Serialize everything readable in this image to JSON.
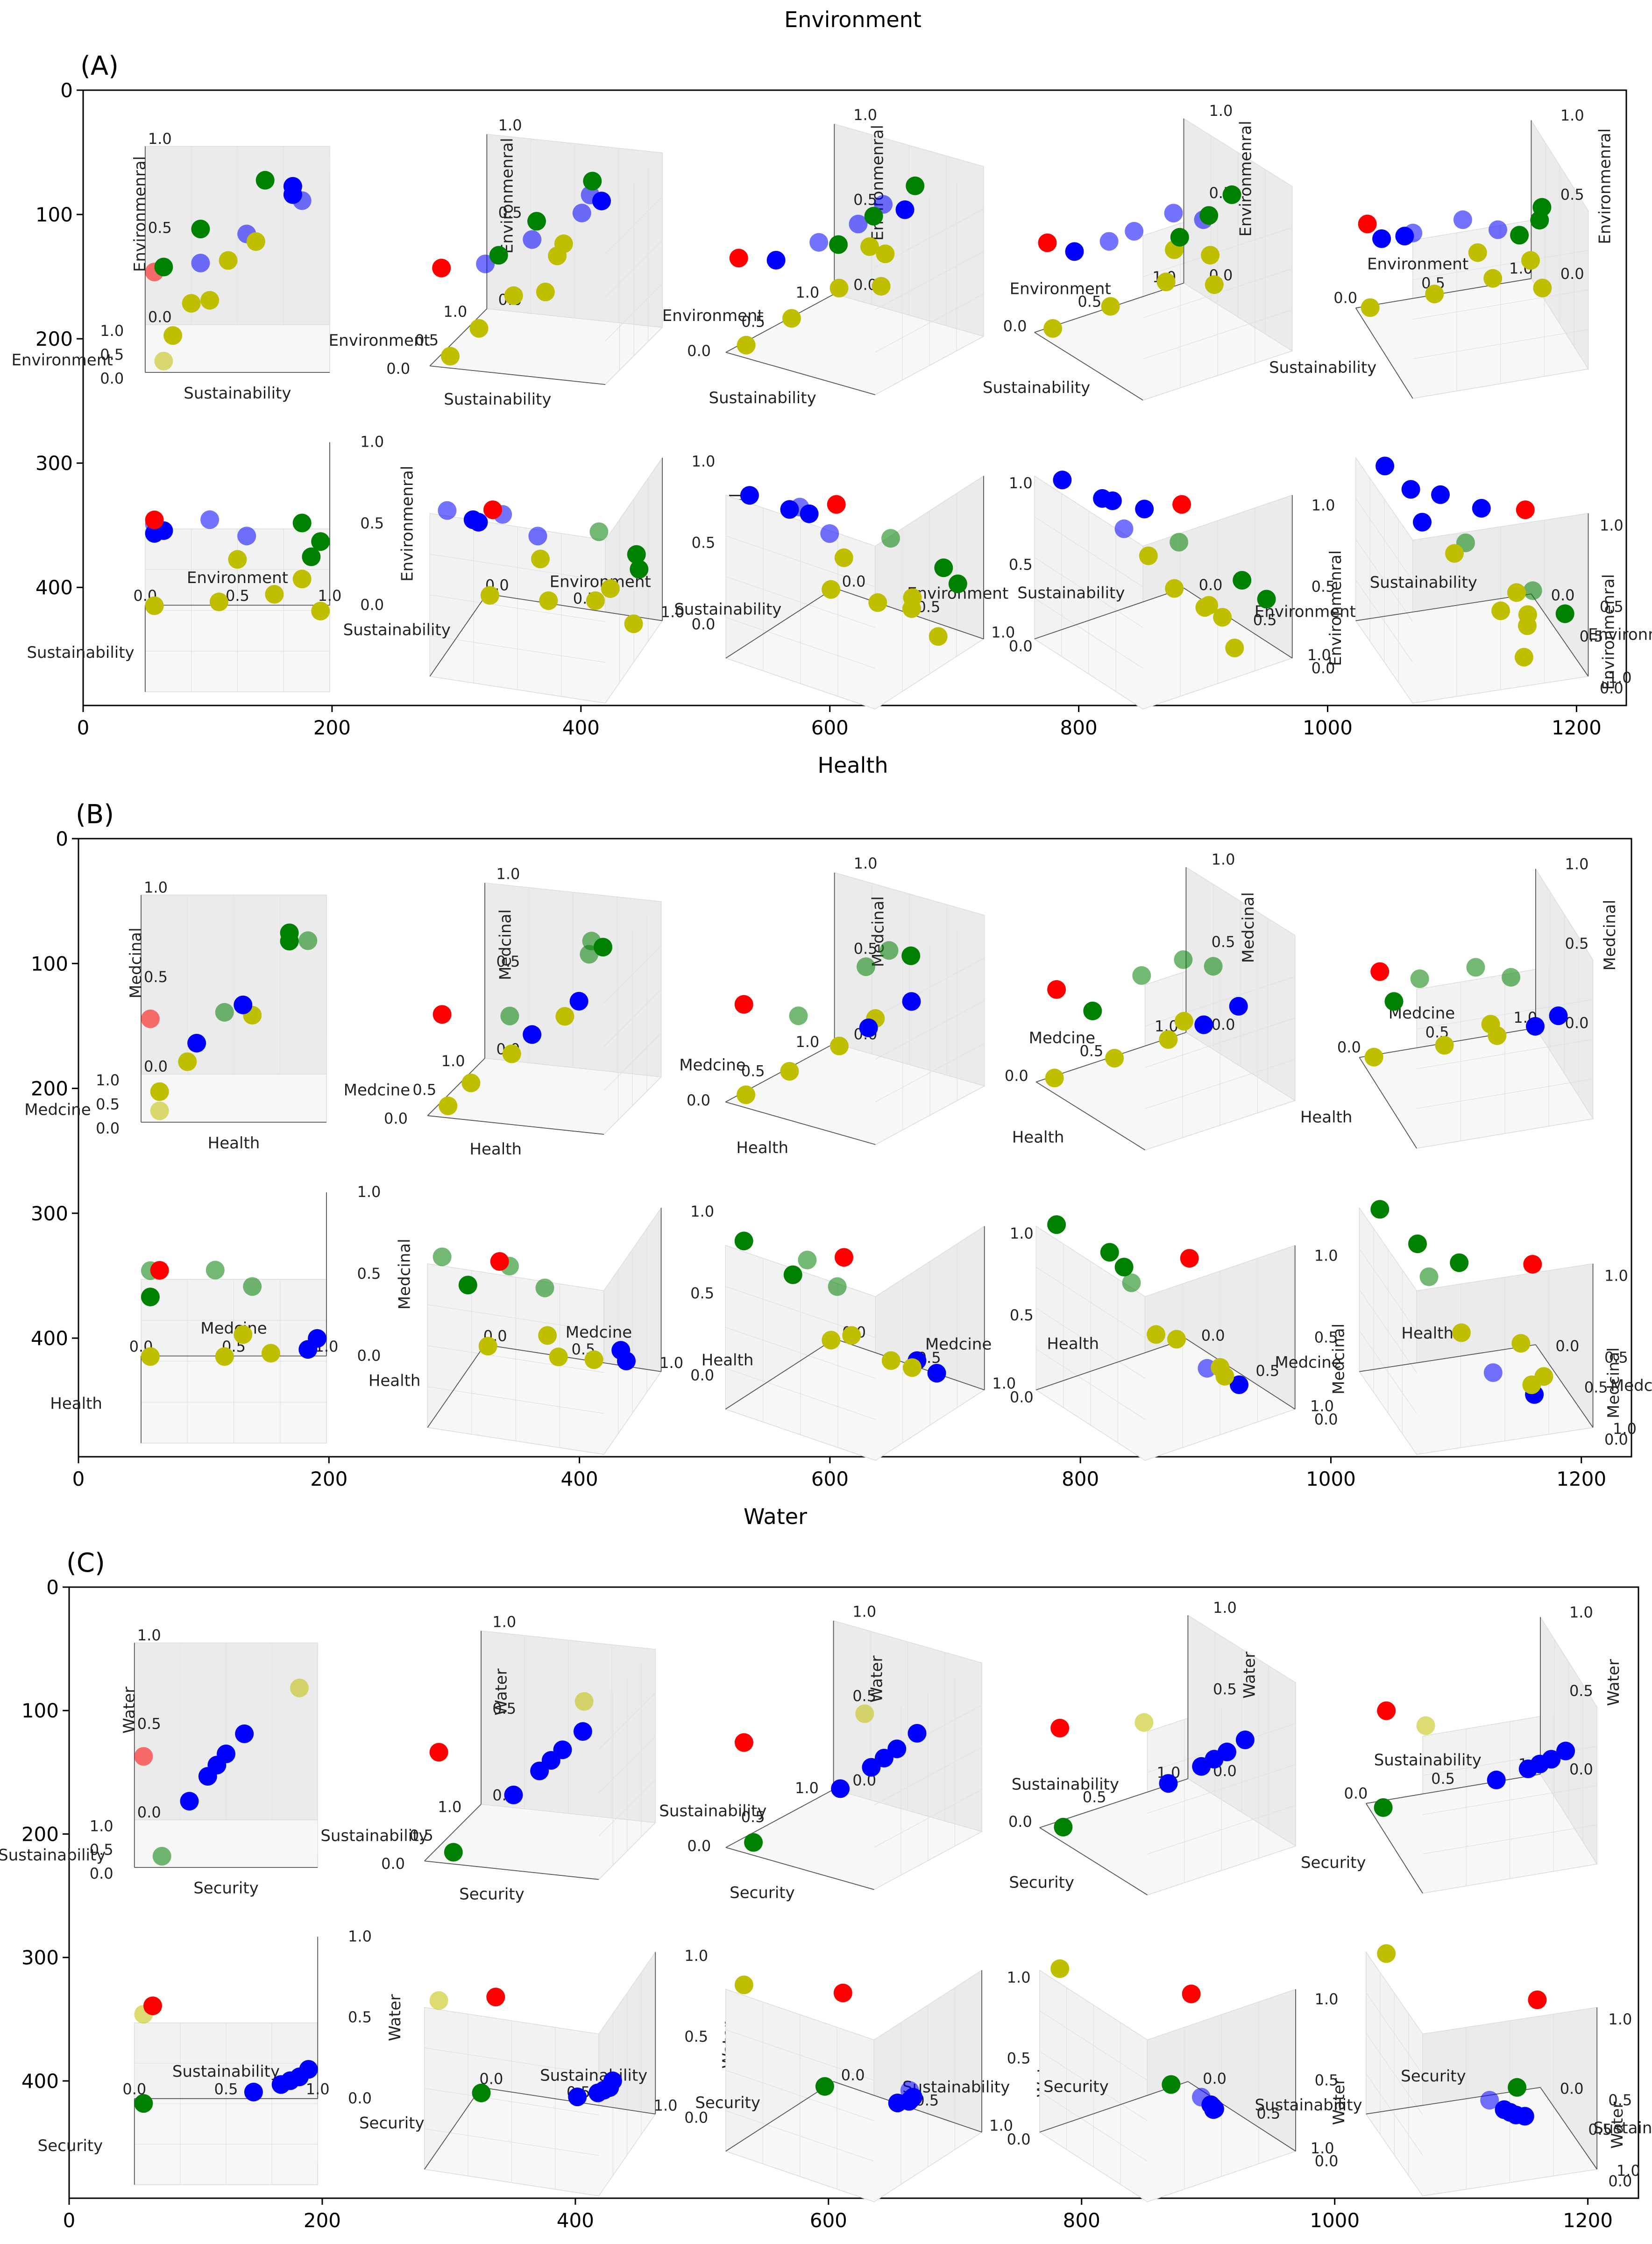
{
  "figure": {
    "title": "Environment"
  },
  "chart_data": [
    {
      "panel": "(A)",
      "type": "scatter",
      "xlabel": "Health",
      "x_ticks": [
        "0",
        "200",
        "400",
        "600",
        "800",
        "1000",
        "1200"
      ],
      "y_ticks": [
        "0",
        "100",
        "200",
        "300",
        "400"
      ],
      "xlim": [
        0,
        1240
      ],
      "ylim": [
        0,
        495
      ],
      "subplot_axes": {
        "x": "Environment",
        "y": "Sustainability",
        "z": "Environmenral"
      },
      "subplot_tick_labels": [
        "0.0",
        "0.5",
        "1.0"
      ],
      "colors": {
        "blue": "#0000ff",
        "green": "#008000",
        "yellow": "#bfbf00",
        "red": "#ff0000"
      },
      "points": [
        {
          "x": 0.05,
          "y": 0.85,
          "z": 0.95,
          "c": "blue"
        },
        {
          "x": 0.35,
          "y": 0.8,
          "z": 0.95,
          "c": "blue"
        },
        {
          "x": 0.55,
          "y": 0.8,
          "z": 0.85,
          "c": "blue"
        },
        {
          "x": 0.1,
          "y": 0.55,
          "z": 0.75,
          "c": "blue"
        },
        {
          "x": 0.05,
          "y": 0.3,
          "z": 0.6,
          "c": "blue"
        },
        {
          "x": 0.85,
          "y": 0.65,
          "z": 0.85,
          "c": "green"
        },
        {
          "x": 0.95,
          "y": 0.3,
          "z": 0.55,
          "c": "green"
        },
        {
          "x": 0.9,
          "y": 0.1,
          "z": 0.35,
          "c": "green"
        },
        {
          "x": 0.5,
          "y": 0.6,
          "z": 0.6,
          "c": "yellow"
        },
        {
          "x": 0.85,
          "y": 0.45,
          "z": 0.4,
          "c": "yellow"
        },
        {
          "x": 0.7,
          "y": 0.25,
          "z": 0.2,
          "c": "yellow"
        },
        {
          "x": 0.4,
          "y": 0.15,
          "z": 0.1,
          "c": "yellow"
        },
        {
          "x": 0.05,
          "y": 0.1,
          "z": 0.05,
          "c": "yellow"
        },
        {
          "x": 0.95,
          "y": 0.35,
          "z": 0.15,
          "c": "yellow"
        },
        {
          "x": 0.05,
          "y": 0.05,
          "z": 0.55,
          "c": "red"
        }
      ]
    },
    {
      "panel": "(B)",
      "type": "scatter",
      "xlabel": "Water",
      "x_ticks": [
        "0",
        "200",
        "400",
        "600",
        "800",
        "1000",
        "1200"
      ],
      "y_ticks": [
        "0",
        "100",
        "200",
        "300",
        "400"
      ],
      "xlim": [
        0,
        1240
      ],
      "ylim": [
        0,
        495
      ],
      "subplot_axes": {
        "x": "Medcine",
        "y": "Health",
        "z": "Medcinal"
      },
      "subplot_tick_labels": [
        "0.0",
        "0.5",
        "1.0"
      ],
      "colors": {
        "blue": "#0000ff",
        "green": "#008000",
        "yellow": "#bfbf00",
        "red": "#ff0000"
      },
      "points": [
        {
          "x": 0.05,
          "y": 0.9,
          "z": 1.0,
          "c": "green"
        },
        {
          "x": 0.4,
          "y": 0.8,
          "z": 0.95,
          "c": "green"
        },
        {
          "x": 0.6,
          "y": 0.8,
          "z": 0.85,
          "c": "green"
        },
        {
          "x": 0.05,
          "y": 0.45,
          "z": 0.6,
          "c": "green"
        },
        {
          "x": 0.95,
          "y": 0.55,
          "z": 0.4,
          "c": "blue"
        },
        {
          "x": 0.9,
          "y": 0.3,
          "z": 0.2,
          "c": "blue"
        },
        {
          "x": 0.55,
          "y": 0.6,
          "z": 0.45,
          "c": "yellow"
        },
        {
          "x": 0.7,
          "y": 0.25,
          "z": 0.15,
          "c": "yellow"
        },
        {
          "x": 0.45,
          "y": 0.1,
          "z": 0.05,
          "c": "yellow"
        },
        {
          "x": 0.05,
          "y": 0.1,
          "z": 0.05,
          "c": "yellow"
        },
        {
          "x": 0.1,
          "y": 0.05,
          "z": 0.55,
          "c": "red"
        }
      ]
    },
    {
      "panel": "(C)",
      "type": "scatter",
      "xlabel": "",
      "x_ticks": [
        "0",
        "200",
        "400",
        "600",
        "800",
        "1000",
        "1200"
      ],
      "y_ticks": [
        "0",
        "100",
        "200",
        "300",
        "400"
      ],
      "xlim": [
        0,
        1240
      ],
      "ylim": [
        0,
        495
      ],
      "subplot_axes": {
        "x": "Sustainability",
        "y": "Security",
        "z": "Water"
      },
      "subplot_tick_labels": [
        "0.0",
        "0.5",
        "1.0"
      ],
      "colors": {
        "blue": "#0000ff",
        "green": "#008000",
        "yellow": "#bfbf00",
        "red": "#ff0000"
      },
      "points": [
        {
          "x": 0.05,
          "y": 0.9,
          "z": 1.0,
          "c": "yellow"
        },
        {
          "x": 0.1,
          "y": 0.05,
          "z": 0.6,
          "c": "red"
        },
        {
          "x": 0.05,
          "y": 0.15,
          "z": 0.05,
          "c": "green"
        },
        {
          "x": 0.95,
          "y": 0.6,
          "z": 0.5,
          "c": "blue"
        },
        {
          "x": 0.9,
          "y": 0.5,
          "z": 0.4,
          "c": "blue"
        },
        {
          "x": 0.85,
          "y": 0.45,
          "z": 0.35,
          "c": "blue"
        },
        {
          "x": 0.8,
          "y": 0.4,
          "z": 0.3,
          "c": "blue"
        },
        {
          "x": 0.65,
          "y": 0.3,
          "z": 0.2,
          "c": "blue"
        }
      ]
    }
  ]
}
